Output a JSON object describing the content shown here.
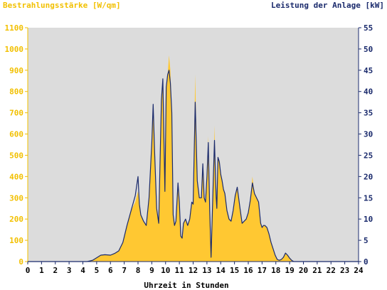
{
  "chart_data": {
    "type": "area",
    "title_left": "Bestrahlungsstärke [W/qm]",
    "title_right": "Leistung der Anlage [kW]",
    "xlabel": "Uhrzeit in Stunden",
    "xlim": [
      0,
      24
    ],
    "ylim_left": [
      0,
      1100
    ],
    "ylim_right": [
      0,
      55
    ],
    "x_ticks": [
      "0",
      "1",
      "2",
      "3",
      "4",
      "5",
      "6",
      "7",
      "8",
      "9",
      "10",
      "11",
      "12",
      "13",
      "14",
      "15",
      "16",
      "17",
      "18",
      "19",
      "20",
      "21",
      "22",
      "23",
      "24"
    ],
    "y_ticks_left": [
      "0",
      "100",
      "200",
      "300",
      "400",
      "500",
      "600",
      "700",
      "800",
      "900",
      "1000",
      "1100"
    ],
    "y_ticks_right": [
      "0",
      "5",
      "10",
      "15",
      "20",
      "25",
      "30",
      "35",
      "40",
      "45",
      "50",
      "55"
    ],
    "grid": false,
    "colors": {
      "plot_background": "#dcdcdc",
      "irradiance_fill": "#ffc832",
      "power_line": "#1a2a6c",
      "left_axis": "#f2c000",
      "right_axis": "#1a2a6c"
    },
    "series": [
      {
        "name": "Bestrahlungsstärke [W/qm]",
        "axis": "left",
        "style": "area",
        "x": [
          0,
          4.3,
          4.7,
          5.0,
          5.3,
          5.6,
          6.0,
          6.3,
          6.6,
          6.9,
          7.2,
          7.5,
          7.8,
          8.0,
          8.1,
          8.2,
          8.4,
          8.6,
          8.8,
          9.0,
          9.1,
          9.2,
          9.35,
          9.5,
          9.7,
          9.8,
          9.95,
          10.05,
          10.15,
          10.25,
          10.35,
          10.45,
          10.55,
          10.65,
          10.75,
          10.9,
          11.0,
          11.1,
          11.2,
          11.3,
          11.45,
          11.6,
          11.75,
          11.9,
          12.0,
          12.15,
          12.3,
          12.45,
          12.6,
          12.7,
          12.8,
          12.9,
          13.0,
          13.1,
          13.2,
          13.3,
          13.45,
          13.55,
          13.62,
          13.67,
          13.72,
          13.8,
          13.9,
          14.0,
          14.1,
          14.2,
          14.3,
          14.45,
          14.6,
          14.75,
          14.9,
          15.05,
          15.2,
          15.4,
          15.55,
          15.7,
          15.85,
          16.0,
          16.15,
          16.3,
          16.45,
          16.6,
          16.75,
          16.9,
          17.0,
          17.1,
          17.2,
          17.35,
          17.5,
          17.65,
          17.8,
          17.95,
          18.1,
          18.25,
          18.4,
          18.55,
          18.7,
          18.85,
          19.0,
          19.15,
          19.3,
          19.45,
          19.6,
          19.75,
          19.9,
          20.0,
          20.2,
          24.0
        ],
        "values": [
          0,
          0,
          5,
          18,
          30,
          32,
          30,
          38,
          50,
          90,
          170,
          240,
          280,
          330,
          270,
          220,
          190,
          170,
          300,
          560,
          740,
          520,
          250,
          180,
          760,
          860,
          330,
          820,
          880,
          970,
          900,
          700,
          220,
          170,
          190,
          360,
          280,
          120,
          110,
          180,
          200,
          170,
          200,
          280,
          270,
          880,
          380,
          300,
          300,
          440,
          300,
          280,
          400,
          590,
          240,
          20,
          360,
          640,
          400,
          300,
          250,
          490,
          470,
          410,
          380,
          340,
          320,
          240,
          200,
          190,
          240,
          310,
          350,
          250,
          180,
          190,
          200,
          230,
          290,
          400,
          320,
          300,
          280,
          180,
          160,
          170,
          170,
          160,
          130,
          90,
          60,
          30,
          10,
          5,
          10,
          20,
          40,
          30,
          15,
          5,
          0,
          0,
          0,
          0,
          0,
          0,
          0,
          0
        ]
      },
      {
        "name": "Leistung der Anlage [kW]",
        "axis": "right",
        "style": "line",
        "x": [
          0,
          4.3,
          4.7,
          5.0,
          5.3,
          5.6,
          6.0,
          6.3,
          6.6,
          6.9,
          7.2,
          7.5,
          7.8,
          8.0,
          8.1,
          8.2,
          8.4,
          8.6,
          8.8,
          9.0,
          9.1,
          9.2,
          9.35,
          9.5,
          9.7,
          9.8,
          9.95,
          10.05,
          10.15,
          10.25,
          10.35,
          10.45,
          10.55,
          10.65,
          10.75,
          10.9,
          11.0,
          11.1,
          11.2,
          11.3,
          11.45,
          11.6,
          11.75,
          11.9,
          12.0,
          12.15,
          12.3,
          12.45,
          12.6,
          12.7,
          12.8,
          12.9,
          13.0,
          13.1,
          13.2,
          13.3,
          13.45,
          13.55,
          13.62,
          13.67,
          13.72,
          13.8,
          13.9,
          14.0,
          14.1,
          14.2,
          14.3,
          14.45,
          14.6,
          14.75,
          14.9,
          15.05,
          15.2,
          15.4,
          15.55,
          15.7,
          15.85,
          16.0,
          16.15,
          16.3,
          16.45,
          16.6,
          16.75,
          16.9,
          17.0,
          17.1,
          17.2,
          17.35,
          17.5,
          17.65,
          17.8,
          17.95,
          18.1,
          18.25,
          18.4,
          18.55,
          18.7,
          18.85,
          19.0,
          19.15,
          19.3,
          19.45,
          19.6,
          19.75,
          19.9,
          20.0,
          20.2,
          24.0
        ],
        "values": [
          0,
          0,
          0.3,
          0.9,
          1.5,
          1.6,
          1.5,
          1.9,
          2.5,
          4.5,
          8.5,
          12.0,
          15.5,
          20.0,
          13.5,
          11.0,
          9.5,
          8.5,
          15.0,
          28.0,
          37.0,
          26.0,
          12.5,
          9.0,
          38.0,
          43.0,
          16.5,
          41.0,
          44.0,
          45.0,
          42.0,
          35.0,
          11.0,
          8.5,
          9.5,
          18.5,
          14.0,
          6.0,
          5.5,
          9.0,
          10.0,
          8.5,
          10.0,
          14.0,
          13.5,
          37.5,
          19.0,
          15.0,
          15.0,
          23.0,
          15.0,
          14.0,
          20.0,
          28.0,
          12.0,
          1.0,
          18.0,
          28.5,
          20.0,
          15.0,
          12.5,
          24.5,
          23.5,
          20.5,
          19.0,
          17.0,
          16.0,
          12.0,
          10.0,
          9.5,
          12.0,
          15.5,
          17.5,
          12.5,
          9.0,
          9.5,
          10.0,
          11.5,
          14.5,
          18.5,
          16.0,
          15.0,
          14.0,
          9.0,
          8.0,
          8.5,
          8.5,
          8.0,
          6.5,
          4.5,
          3.0,
          1.5,
          0.5,
          0.3,
          0.5,
          1.0,
          2.0,
          1.5,
          0.8,
          0.3,
          0,
          0,
          0,
          0,
          0,
          0,
          0,
          0
        ]
      }
    ]
  }
}
